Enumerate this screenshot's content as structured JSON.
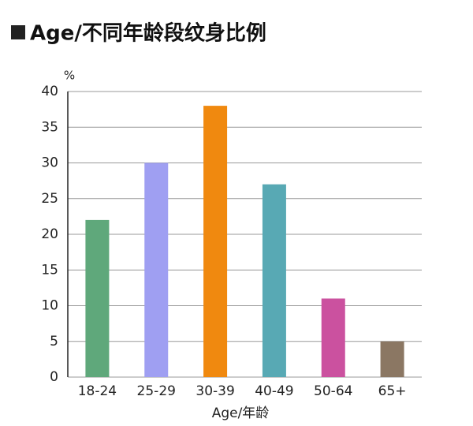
{
  "chart_data": {
    "type": "bar",
    "title": "Age/不同年龄段纹身比例",
    "ylabel": "%",
    "xlabel": "Age/年龄",
    "categories": [
      "18-24",
      "25-29",
      "30-39",
      "40-49",
      "50-64",
      "65+"
    ],
    "values": [
      22,
      30,
      38,
      27,
      11,
      5
    ],
    "colors": [
      "#5fa87b",
      "#9f9ff2",
      "#f0890f",
      "#58a9b4",
      "#cb519f",
      "#8b7763"
    ],
    "ylim": [
      0,
      40
    ],
    "yticks": [
      0,
      5,
      10,
      15,
      20,
      25,
      30,
      35,
      40
    ],
    "grid": true
  }
}
